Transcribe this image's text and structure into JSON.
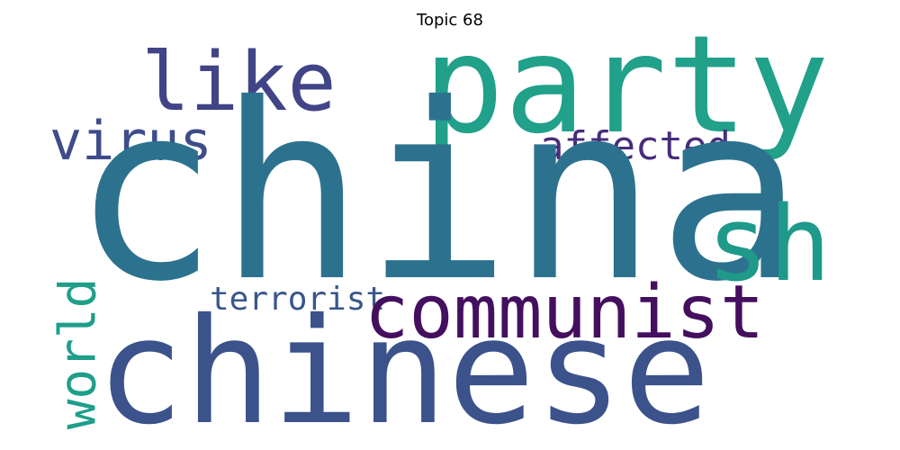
{
  "title": "Topic 68",
  "words": [
    {
      "text": "china",
      "color": "#2c728e"
    },
    {
      "text": "chinese",
      "color": "#3b528b"
    },
    {
      "text": "party",
      "color": "#21a08a"
    },
    {
      "text": "communist",
      "color": "#440f5e"
    },
    {
      "text": "like",
      "color": "#414487"
    },
    {
      "text": "sh",
      "color": "#1f9a8a"
    },
    {
      "text": "virus",
      "color": "#3e4c8a"
    },
    {
      "text": "affected",
      "color": "#472d7b"
    },
    {
      "text": "world",
      "color": "#1f9e89"
    },
    {
      "text": "terrorist",
      "color": "#39568c"
    }
  ]
}
